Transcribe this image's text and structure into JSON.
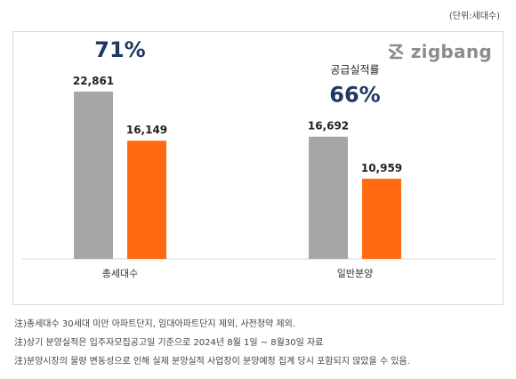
{
  "unit_label": "(단위:세대수)",
  "logo": {
    "text": "zigbang",
    "icon": "zigbang-logo-icon"
  },
  "chart_data": {
    "type": "bar",
    "categories": [
      "총세대수",
      "일반분양"
    ],
    "series": [
      {
        "values": [
          22861,
          16692
        ],
        "labels": [
          "22,861",
          "16,692"
        ],
        "color": "#a6a6a6"
      },
      {
        "values": [
          16149,
          10959
        ],
        "labels": [
          "16,149",
          "10,959"
        ],
        "color": "#ff6a13"
      }
    ],
    "annotations": [
      {
        "category": "총세대수",
        "label": "공급실적률",
        "value": "71%"
      },
      {
        "category": "일반분양",
        "label": "공급실적률",
        "value": "66%"
      }
    ],
    "ylim": [
      0,
      31000
    ],
    "grid": false,
    "legend": "none",
    "annotation_color": "#1f3864"
  },
  "notes": [
    "注)총세대수 30세대 미만 아파트단지, 임대아파트단지 제외, 사전청약 제외.",
    "注)상기 분양실적은 입주자모집공고일 기준으로 2024년 8월 1일 ~ 8월30일 자료",
    "注)분양시장의 물량 변동성으로 인해 실제 분양실적 사업장이 분양예정 집계 당시 포함되지 않았을 수 있음."
  ]
}
